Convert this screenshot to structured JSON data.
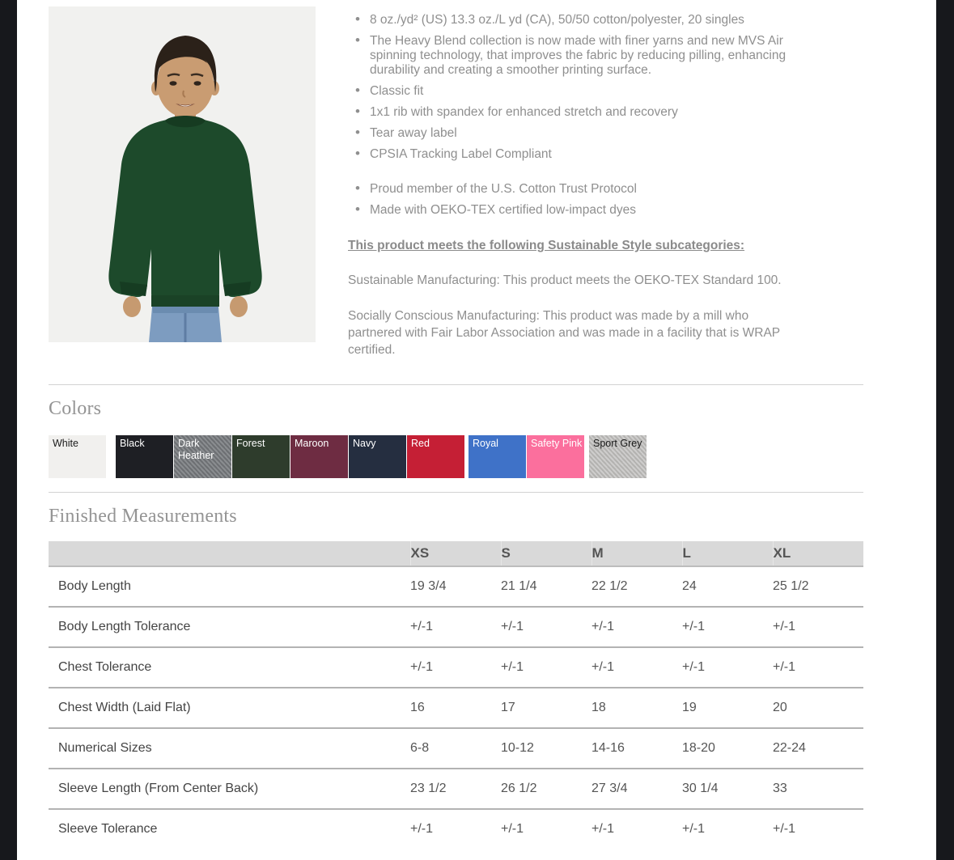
{
  "page": {
    "frame_color": "#17181c",
    "background": "#ffffff"
  },
  "product": {
    "image_label": "Child wearing forest green crewneck sweatshirt",
    "bullets_primary": [
      "8 oz./yd² (US) 13.3 oz./L yd (CA), 50/50 cotton/polyester, 20 singles",
      "The Heavy Blend collection is now made with finer yarns and new MVS Air spinning technology, that improves the fabric by reducing pilling, enhancing durability and creating a smoother printing surface.",
      "Classic fit",
      "1x1 rib with spandex for enhanced stretch and recovery",
      "Tear away label",
      "CPSIA Tracking Label Compliant"
    ],
    "bullets_secondary": [
      "Proud member of the U.S. Cotton Trust Protocol",
      "Made with OEKO-TEX certified low-impact dyes"
    ],
    "sustainable_heading": "This product meets the following Sustainable Style subcategories:",
    "paragraphs": [
      "Sustainable Manufacturing: This product meets the OEKO-TEX Standard 100.",
      "Socially Conscious Manufacturing: This product was made by a mill who partnered with Fair Labor Association and was made in a facility that is WRAP certified."
    ]
  },
  "colors_section": {
    "title": "Colors",
    "swatches": [
      {
        "name": "White",
        "hex": "#f1f0ee",
        "text": "#1a1a1a"
      },
      {
        "name": "Black",
        "hex": "#1e1f24",
        "text": "#ffffff"
      },
      {
        "name": "Dark Heather",
        "hex": "#797c80",
        "text": "#ffffff",
        "heather": true
      },
      {
        "name": "Forest",
        "hex": "#2e3c2c",
        "text": "#ffffff"
      },
      {
        "name": "Maroon",
        "hex": "#6e2c42",
        "text": "#ffffff"
      },
      {
        "name": "Navy",
        "hex": "#252e40",
        "text": "#ffffff"
      },
      {
        "name": "Red",
        "hex": "#c51f35",
        "text": "#ffffff"
      },
      {
        "name": "Royal",
        "hex": "#3f72c8",
        "text": "#ffffff"
      },
      {
        "name": "Safety Pink",
        "hex": "#fb6f9d",
        "text": "#ffffff"
      },
      {
        "name": "Sport Grey",
        "hex": "#c7c6c4",
        "text": "#1a1a1a",
        "heather": true
      }
    ]
  },
  "measurements": {
    "title": "Finished Measurements",
    "columns": [
      "XS",
      "S",
      "M",
      "L",
      "XL"
    ],
    "rows": [
      {
        "label": "Body Length",
        "values": [
          "19 3/4",
          "21 1/4",
          "22 1/2",
          "24",
          "25 1/2"
        ]
      },
      {
        "label": "Body Length Tolerance",
        "values": [
          "+/-1",
          "+/-1",
          "+/-1",
          "+/-1",
          "+/-1"
        ]
      },
      {
        "label": "Chest Tolerance",
        "values": [
          "+/-1",
          "+/-1",
          "+/-1",
          "+/-1",
          "+/-1"
        ]
      },
      {
        "label": "Chest Width (Laid Flat)",
        "values": [
          "16",
          "17",
          "18",
          "19",
          "20"
        ]
      },
      {
        "label": "Numerical Sizes",
        "values": [
          "6-8",
          "10-12",
          "14-16",
          "18-20",
          "22-24"
        ]
      },
      {
        "label": "Sleeve Length (From Center Back)",
        "values": [
          "23 1/2",
          "26 1/2",
          "27 3/4",
          "30 1/4",
          "33"
        ]
      },
      {
        "label": "Sleeve Tolerance",
        "values": [
          "+/-1",
          "+/-1",
          "+/-1",
          "+/-1",
          "+/-1"
        ]
      }
    ]
  }
}
